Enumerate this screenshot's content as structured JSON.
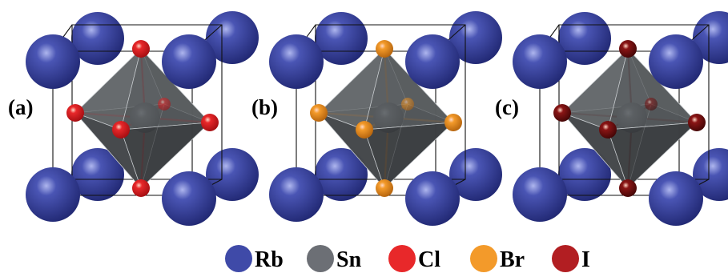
{
  "panels": [
    {
      "label": "(a)",
      "halide": "Cl",
      "halide_color": "#e8282a",
      "halide_dark": "#a00c10"
    },
    {
      "label": "(b)",
      "halide": "Br",
      "halide_color": "#f39a2a",
      "halide_dark": "#b0600c"
    },
    {
      "label": "(c)",
      "halide": "I",
      "halide_color": "#8a1515",
      "halide_dark": "#3f0505"
    }
  ],
  "atom_colors": {
    "Rb": "#4a55b4",
    "Rb_dark": "#1f2670",
    "Sn": "#5a5d62",
    "octahedron": "#555a5c"
  },
  "legend": [
    {
      "symbol": "Rb",
      "color": "#3f4aa8"
    },
    {
      "symbol": "Sn",
      "color": "#6c6f75"
    },
    {
      "symbol": "Cl",
      "color": "#e8282a"
    },
    {
      "symbol": "Br",
      "color": "#f39a2a"
    },
    {
      "symbol": "I",
      "color": "#b21e22"
    }
  ]
}
